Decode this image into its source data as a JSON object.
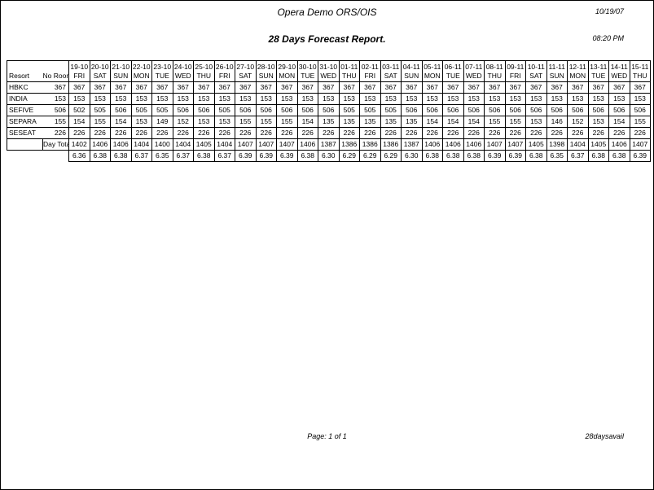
{
  "header": {
    "app_title": "Opera Demo ORS/OIS",
    "date": "10/19/07",
    "report_title": "28 Days Forecast Report.",
    "time": "08:20 PM"
  },
  "footer": {
    "page_label": "Page: 1 of 1",
    "report_name": "28daysavail"
  },
  "table": {
    "corner": {
      "resort_label": "Resort",
      "no_room_label": "No Room",
      "day_total_label": "Day Total"
    },
    "columns": [
      {
        "date": "19-10",
        "day": "FRI"
      },
      {
        "date": "20-10",
        "day": "SAT"
      },
      {
        "date": "21-10",
        "day": "SUN"
      },
      {
        "date": "22-10",
        "day": "MON"
      },
      {
        "date": "23-10",
        "day": "TUE"
      },
      {
        "date": "24-10",
        "day": "WED"
      },
      {
        "date": "25-10",
        "day": "THU"
      },
      {
        "date": "26-10",
        "day": "FRI"
      },
      {
        "date": "27-10",
        "day": "SAT"
      },
      {
        "date": "28-10",
        "day": "SUN"
      },
      {
        "date": "29-10",
        "day": "MON"
      },
      {
        "date": "30-10",
        "day": "TUE"
      },
      {
        "date": "31-10",
        "day": "WED"
      },
      {
        "date": "01-11",
        "day": "THU"
      },
      {
        "date": "02-11",
        "day": "FRI"
      },
      {
        "date": "03-11",
        "day": "SAT"
      },
      {
        "date": "04-11",
        "day": "SUN"
      },
      {
        "date": "05-11",
        "day": "MON"
      },
      {
        "date": "06-11",
        "day": "TUE"
      },
      {
        "date": "07-11",
        "day": "WED"
      },
      {
        "date": "08-11",
        "day": "THU"
      },
      {
        "date": "09-11",
        "day": "FRI"
      },
      {
        "date": "10-11",
        "day": "SAT"
      },
      {
        "date": "11-11",
        "day": "SUN"
      },
      {
        "date": "12-11",
        "day": "MON"
      },
      {
        "date": "13-11",
        "day": "TUE"
      },
      {
        "date": "14-11",
        "day": "WED"
      },
      {
        "date": "15-11",
        "day": "THU"
      }
    ],
    "rows": [
      {
        "resort": "HBKC",
        "no_room": "367",
        "values": [
          "367",
          "367",
          "367",
          "367",
          "367",
          "367",
          "367",
          "367",
          "367",
          "367",
          "367",
          "367",
          "367",
          "367",
          "367",
          "367",
          "367",
          "367",
          "367",
          "367",
          "367",
          "367",
          "367",
          "367",
          "367",
          "367",
          "367",
          "367"
        ]
      },
      {
        "resort": "INDIA",
        "no_room": "153",
        "values": [
          "153",
          "153",
          "153",
          "153",
          "153",
          "153",
          "153",
          "153",
          "153",
          "153",
          "153",
          "153",
          "153",
          "153",
          "153",
          "153",
          "153",
          "153",
          "153",
          "153",
          "153",
          "153",
          "153",
          "153",
          "153",
          "153",
          "153",
          "153"
        ]
      },
      {
        "resort": "SEFIVE",
        "no_room": "506",
        "values": [
          "502",
          "505",
          "506",
          "505",
          "505",
          "506",
          "506",
          "505",
          "506",
          "506",
          "506",
          "506",
          "506",
          "505",
          "505",
          "505",
          "506",
          "506",
          "506",
          "506",
          "506",
          "506",
          "506",
          "506",
          "506",
          "506",
          "506",
          "506"
        ]
      },
      {
        "resort": "SEPARA",
        "no_room": "155",
        "values": [
          "154",
          "155",
          "154",
          "153",
          "149",
          "152",
          "153",
          "153",
          "155",
          "155",
          "155",
          "154",
          "135",
          "135",
          "135",
          "135",
          "135",
          "154",
          "154",
          "154",
          "155",
          "155",
          "153",
          "146",
          "152",
          "153",
          "154",
          "155"
        ]
      },
      {
        "resort": "SESEAT",
        "no_room": "226",
        "values": [
          "226",
          "226",
          "226",
          "226",
          "226",
          "226",
          "226",
          "226",
          "226",
          "226",
          "226",
          "226",
          "226",
          "226",
          "226",
          "226",
          "226",
          "226",
          "226",
          "226",
          "226",
          "226",
          "226",
          "226",
          "226",
          "226",
          "226",
          "226"
        ]
      }
    ],
    "day_total": [
      "1402",
      "1406",
      "1406",
      "1404",
      "1400",
      "1404",
      "1405",
      "1404",
      "1407",
      "1407",
      "1407",
      "1406",
      "1387",
      "1386",
      "1386",
      "1386",
      "1387",
      "1406",
      "1406",
      "1406",
      "1407",
      "1407",
      "1405",
      "1398",
      "1404",
      "1405",
      "1406",
      "1407"
    ],
    "avg": [
      "6.36",
      "6.38",
      "6.38",
      "6.37",
      "6.35",
      "6.37",
      "6.38",
      "6.37",
      "6.39",
      "6.39",
      "6.39",
      "6.38",
      "6.30",
      "6.29",
      "6.29",
      "6.29",
      "6.30",
      "6.38",
      "6.38",
      "6.38",
      "6.39",
      "6.39",
      "6.38",
      "6.35",
      "6.37",
      "6.38",
      "6.38",
      "6.39"
    ]
  }
}
